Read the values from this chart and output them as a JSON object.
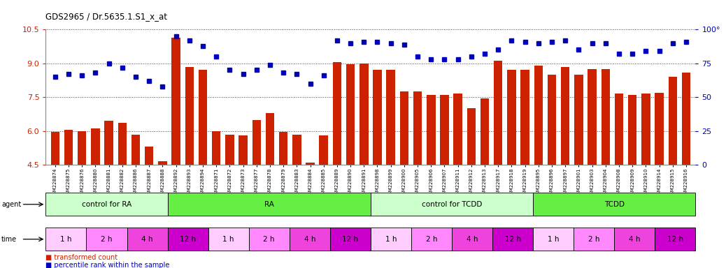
{
  "title": "GDS2965 / Dr.5635.1.S1_x_at",
  "samples": [
    "GSM228874",
    "GSM228875",
    "GSM228876",
    "GSM228880",
    "GSM228881",
    "GSM228882",
    "GSM228886",
    "GSM228887",
    "GSM228888",
    "GSM228892",
    "GSM228893",
    "GSM228894",
    "GSM228871",
    "GSM228872",
    "GSM228873",
    "GSM228877",
    "GSM228878",
    "GSM228879",
    "GSM228883",
    "GSM228884",
    "GSM228885",
    "GSM228889",
    "GSM228890",
    "GSM228891",
    "GSM228898",
    "GSM228899",
    "GSM228900",
    "GSM228905",
    "GSM228906",
    "GSM228907",
    "GSM228911",
    "GSM228912",
    "GSM228913",
    "GSM228917",
    "GSM228918",
    "GSM228919",
    "GSM228895",
    "GSM228896",
    "GSM228897",
    "GSM228901",
    "GSM228903",
    "GSM228904",
    "GSM228908",
    "GSM228909",
    "GSM228910",
    "GSM228914",
    "GSM228915",
    "GSM228916"
  ],
  "bar_values": [
    5.95,
    6.05,
    6.0,
    6.1,
    6.45,
    6.35,
    5.85,
    5.3,
    4.65,
    10.15,
    8.85,
    8.7,
    6.0,
    5.85,
    5.8,
    6.5,
    6.8,
    5.95,
    5.85,
    4.6,
    5.8,
    9.05,
    8.95,
    9.0,
    8.7,
    8.7,
    7.75,
    7.75,
    7.6,
    7.6,
    7.65,
    7.0,
    7.45,
    9.1,
    8.7,
    8.7,
    8.9,
    8.5,
    8.85,
    8.5,
    8.75,
    8.75,
    7.65,
    7.6,
    7.65,
    7.7,
    8.4,
    8.6
  ],
  "dot_values_pct": [
    65,
    67,
    66,
    68,
    75,
    72,
    65,
    62,
    58,
    95,
    92,
    88,
    80,
    70,
    67,
    70,
    74,
    68,
    67,
    60,
    66,
    92,
    90,
    91,
    91,
    90,
    89,
    80,
    78,
    78,
    78,
    80,
    82,
    85,
    92,
    91,
    90,
    91,
    92,
    85,
    90,
    90,
    82,
    82,
    84,
    84,
    90,
    91
  ],
  "ylim": [
    4.5,
    10.5
  ],
  "yticks_left": [
    4.5,
    6.0,
    7.5,
    9.0,
    10.5
  ],
  "yticks_right": [
    0,
    25,
    50,
    75,
    100
  ],
  "bar_color": "#CC2200",
  "dot_color": "#0000BB",
  "background_color": "#FFFFFF",
  "agent_groups": [
    {
      "label": "control for RA",
      "start": 0,
      "end": 9,
      "color": "#CCFFCC"
    },
    {
      "label": "RA",
      "start": 9,
      "end": 24,
      "color": "#66EE44"
    },
    {
      "label": "control for TCDD",
      "start": 24,
      "end": 36,
      "color": "#CCFFCC"
    },
    {
      "label": "TCDD",
      "start": 36,
      "end": 48,
      "color": "#66EE44"
    }
  ],
  "time_groups": [
    {
      "label": "1 h",
      "start": 0,
      "end": 3,
      "color": "#FFCCFF"
    },
    {
      "label": "2 h",
      "start": 3,
      "end": 6,
      "color": "#FF88FF"
    },
    {
      "label": "4 h",
      "start": 6,
      "end": 9,
      "color": "#EE44DD"
    },
    {
      "label": "12 h",
      "start": 9,
      "end": 12,
      "color": "#CC00CC"
    },
    {
      "label": "1 h",
      "start": 12,
      "end": 15,
      "color": "#FFCCFF"
    },
    {
      "label": "2 h",
      "start": 15,
      "end": 18,
      "color": "#FF88FF"
    },
    {
      "label": "4 h",
      "start": 18,
      "end": 21,
      "color": "#EE44DD"
    },
    {
      "label": "12 h",
      "start": 21,
      "end": 24,
      "color": "#CC00CC"
    },
    {
      "label": "1 h",
      "start": 24,
      "end": 27,
      "color": "#FFCCFF"
    },
    {
      "label": "2 h",
      "start": 27,
      "end": 30,
      "color": "#FF88FF"
    },
    {
      "label": "4 h",
      "start": 30,
      "end": 33,
      "color": "#EE44DD"
    },
    {
      "label": "12 h",
      "start": 33,
      "end": 36,
      "color": "#CC00CC"
    },
    {
      "label": "1 h",
      "start": 36,
      "end": 39,
      "color": "#FFCCFF"
    },
    {
      "label": "2 h",
      "start": 39,
      "end": 42,
      "color": "#FF88FF"
    },
    {
      "label": "4 h",
      "start": 42,
      "end": 45,
      "color": "#EE44DD"
    },
    {
      "label": "12 h",
      "start": 45,
      "end": 48,
      "color": "#CC00CC"
    }
  ],
  "legend_bar_label": "transformed count",
  "legend_dot_label": "percentile rank within the sample",
  "grid_color": "#444444"
}
